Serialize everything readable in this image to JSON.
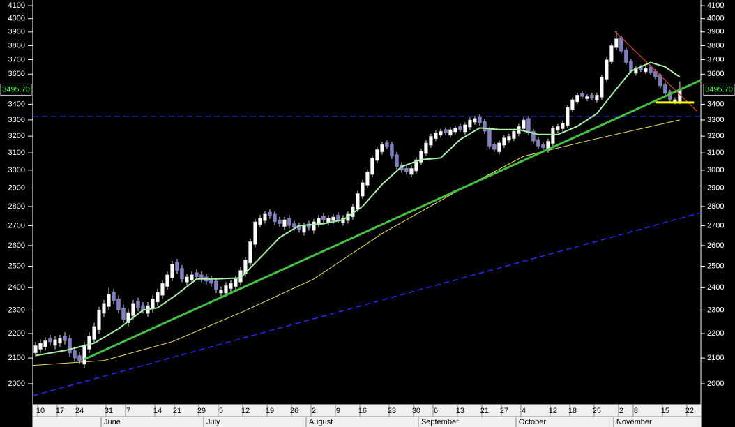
{
  "chart_data": {
    "type": "candlestick",
    "log_scale": true,
    "ylim": [
      1927,
      4144
    ],
    "xlim": [
      -0.571,
      136.3
    ],
    "yticks": [
      2000,
      2100,
      2200,
      2300,
      2400,
      2500,
      2600,
      2700,
      2800,
      2900,
      3000,
      3100,
      3200,
      3300,
      3400,
      3500,
      3600,
      3700,
      3800,
      3900,
      4000,
      4100
    ],
    "xticks": [
      {
        "value": 1,
        "label": "10"
      },
      {
        "value": 5,
        "label": "17"
      },
      {
        "value": 9,
        "label": "24"
      },
      {
        "value": 15,
        "label": "31"
      },
      {
        "value": 19,
        "label": "7"
      },
      {
        "value": 25,
        "label": "14"
      },
      {
        "value": 29,
        "label": "21"
      },
      {
        "value": 34,
        "label": "29"
      },
      {
        "value": 38,
        "label": "5"
      },
      {
        "value": 43,
        "label": "12"
      },
      {
        "value": 48,
        "label": "19"
      },
      {
        "value": 53,
        "label": "26"
      },
      {
        "value": 57,
        "label": "2"
      },
      {
        "value": 62,
        "label": "9"
      },
      {
        "value": 67,
        "label": "16"
      },
      {
        "value": 73,
        "label": "23"
      },
      {
        "value": 78,
        "label": "30"
      },
      {
        "value": 82,
        "label": "6"
      },
      {
        "value": 87,
        "label": "13"
      },
      {
        "value": 92,
        "label": "21"
      },
      {
        "value": 96,
        "label": "27"
      },
      {
        "value": 100,
        "label": "4"
      },
      {
        "value": 106,
        "label": "12"
      },
      {
        "value": 110,
        "label": "18"
      },
      {
        "value": 115,
        "label": "25"
      },
      {
        "value": 120,
        "label": "2"
      },
      {
        "value": 123,
        "label": "8"
      },
      {
        "value": 129,
        "label": "15"
      },
      {
        "value": 134,
        "label": "22"
      }
    ],
    "month_ticks": [
      {
        "value": 14,
        "label": "June"
      },
      {
        "value": 35,
        "label": "July"
      },
      {
        "value": 56,
        "label": "August"
      },
      {
        "value": 79,
        "label": "September"
      },
      {
        "value": 99,
        "label": "October"
      },
      {
        "value": 119,
        "label": "November"
      }
    ],
    "up_color": "#ffffff",
    "down_color": "#8080c0",
    "open": [
      2120,
      2135,
      2145,
      2180,
      2150,
      2160,
      2190,
      2180,
      2130,
      2110,
      2075,
      2135,
      2175,
      2215,
      2285,
      2315,
      2380,
      2350,
      2310,
      2245,
      2275,
      2340,
      2320,
      2285,
      2305,
      2335,
      2365,
      2405,
      2445,
      2520,
      2490,
      2425,
      2435,
      2470,
      2460,
      2450,
      2440,
      2430,
      2375,
      2375,
      2395,
      2405,
      2425,
      2465,
      2515,
      2605,
      2705,
      2725,
      2770,
      2760,
      2730,
      2695,
      2740,
      2710,
      2700,
      2665,
      2710,
      2675,
      2705,
      2750,
      2715,
      2725,
      2755,
      2715,
      2725,
      2745,
      2785,
      2855,
      2915,
      2975,
      3055,
      3105,
      3160,
      3150,
      3090,
      3030,
      3010,
      2975,
      2995,
      3045,
      3095,
      3145,
      3185,
      3205,
      3240,
      3205,
      3225,
      3260,
      3225,
      3255,
      3285,
      3320,
      3290,
      3240,
      3150,
      3105,
      3145,
      3175,
      3185,
      3215,
      3245,
      3310,
      3230,
      3180,
      3150,
      3115,
      3155,
      3235,
      3245,
      3265,
      3365,
      3415,
      3470,
      3435,
      3460,
      3425,
      3445,
      3565,
      3685,
      3785,
      3860,
      3770,
      3690,
      3605,
      3650,
      3615,
      3650,
      3620,
      3590,
      3530,
      3480,
      3415,
      3415
    ],
    "high": [
      2165,
      2175,
      2185,
      2195,
      2190,
      2195,
      2205,
      2195,
      2145,
      2125,
      2165,
      2205,
      2245,
      2315,
      2345,
      2400,
      2395,
      2365,
      2325,
      2305,
      2345,
      2355,
      2335,
      2335,
      2365,
      2395,
      2435,
      2475,
      2525,
      2535,
      2505,
      2465,
      2475,
      2485,
      2475,
      2465,
      2455,
      2445,
      2405,
      2425,
      2435,
      2455,
      2495,
      2545,
      2635,
      2735,
      2755,
      2775,
      2785,
      2775,
      2745,
      2745,
      2755,
      2725,
      2715,
      2715,
      2725,
      2735,
      2755,
      2765,
      2755,
      2760,
      2770,
      2755,
      2775,
      2815,
      2885,
      2945,
      3005,
      3085,
      3135,
      3165,
      3175,
      3165,
      3105,
      3045,
      3025,
      3025,
      3075,
      3125,
      3175,
      3215,
      3235,
      3245,
      3255,
      3255,
      3265,
      3275,
      3285,
      3315,
      3325,
      3335,
      3305,
      3255,
      3165,
      3175,
      3205,
      3215,
      3245,
      3275,
      3315,
      3325,
      3245,
      3195,
      3165,
      3185,
      3265,
      3275,
      3295,
      3395,
      3445,
      3475,
      3485,
      3465,
      3475,
      3475,
      3595,
      3715,
      3815,
      3905,
      3875,
      3785,
      3705,
      3655,
      3665,
      3655,
      3665,
      3635,
      3605,
      3545,
      3495,
      3445,
      3550
    ],
    "low": [
      2105,
      2120,
      2130,
      2150,
      2135,
      2145,
      2155,
      2105,
      2085,
      2075,
      2060,
      2120,
      2160,
      2200,
      2270,
      2300,
      2325,
      2285,
      2245,
      2230,
      2260,
      2295,
      2285,
      2270,
      2290,
      2320,
      2350,
      2390,
      2430,
      2465,
      2425,
      2410,
      2420,
      2435,
      2425,
      2415,
      2405,
      2375,
      2360,
      2360,
      2380,
      2390,
      2410,
      2450,
      2500,
      2590,
      2690,
      2710,
      2735,
      2705,
      2695,
      2680,
      2685,
      2675,
      2665,
      2650,
      2675,
      2660,
      2690,
      2715,
      2700,
      2710,
      2715,
      2700,
      2710,
      2730,
      2770,
      2840,
      2900,
      2960,
      3040,
      3090,
      3125,
      3065,
      3005,
      2985,
      2975,
      2960,
      2980,
      3030,
      3080,
      3130,
      3170,
      3190,
      3205,
      3190,
      3210,
      3225,
      3210,
      3240,
      3270,
      3265,
      3215,
      3125,
      3105,
      3090,
      3130,
      3160,
      3170,
      3200,
      3230,
      3205,
      3155,
      3125,
      3115,
      3100,
      3140,
      3220,
      3230,
      3250,
      3350,
      3400,
      3435,
      3420,
      3425,
      3410,
      3430,
      3550,
      3670,
      3770,
      3745,
      3665,
      3605,
      3590,
      3615,
      3600,
      3595,
      3565,
      3505,
      3455,
      3415,
      3400,
      3400
    ],
    "close": [
      2150,
      2160,
      2170,
      2165,
      2175,
      2180,
      2170,
      2120,
      2100,
      2090,
      2150,
      2190,
      2230,
      2300,
      2330,
      2370,
      2340,
      2300,
      2260,
      2290,
      2330,
      2310,
      2300,
      2320,
      2350,
      2380,
      2420,
      2460,
      2510,
      2480,
      2440,
      2450,
      2460,
      2450,
      2440,
      2430,
      2420,
      2390,
      2390,
      2410,
      2420,
      2440,
      2480,
      2530,
      2620,
      2720,
      2740,
      2760,
      2750,
      2720,
      2710,
      2730,
      2700,
      2690,
      2680,
      2700,
      2690,
      2720,
      2740,
      2730,
      2740,
      2745,
      2730,
      2740,
      2760,
      2800,
      2870,
      2930,
      2990,
      3070,
      3120,
      3150,
      3140,
      3080,
      3020,
      3000,
      2990,
      3010,
      3060,
      3110,
      3160,
      3200,
      3220,
      3230,
      3220,
      3240,
      3250,
      3240,
      3270,
      3300,
      3310,
      3280,
      3230,
      3140,
      3120,
      3160,
      3190,
      3200,
      3230,
      3260,
      3300,
      3220,
      3170,
      3140,
      3130,
      3170,
      3250,
      3260,
      3280,
      3380,
      3430,
      3460,
      3450,
      3450,
      3440,
      3460,
      3580,
      3700,
      3800,
      3850,
      3760,
      3680,
      3620,
      3640,
      3630,
      3640,
      3610,
      3580,
      3520,
      3470,
      3430,
      3430,
      3495.7
    ],
    "overlays": [
      {
        "color": "#f0e060",
        "width": 1,
        "dash": "",
        "x": [
          -0.571,
          14,
          28,
          43,
          57,
          71,
          86,
          100,
          114,
          132
        ],
        "values": [
          2071,
          2090,
          2166,
          2298,
          2440,
          2660,
          2877,
          3080,
          3178,
          3300
        ]
      },
      {
        "color": "#2828ff",
        "width": 1.5,
        "dash": "8 5",
        "x": [
          -0.571,
          136.3
        ],
        "values": [
          1955,
          2767
        ]
      },
      {
        "color": "#2828ff",
        "width": 1.5,
        "dash": "8 5",
        "x": [
          -0.571,
          136.3
        ],
        "values": [
          3321,
          3321
        ]
      },
      {
        "color": "#44c044",
        "width": 3,
        "dash": "",
        "x": [
          10,
          136.3
        ],
        "values": [
          2095,
          3559
        ]
      },
      {
        "color": "#d04828",
        "width": 1.2,
        "dash": "",
        "x": [
          118.7,
          135.6
        ],
        "values": [
          3904,
          3353
        ]
      },
      {
        "color": "#ffff00",
        "width": 3,
        "dash": "",
        "x": [
          127,
          134.9
        ],
        "values": [
          3411,
          3411
        ]
      },
      {
        "color": "#a8f0a8",
        "width": 2,
        "dash": "",
        "x": [
          0,
          6,
          12,
          17,
          22,
          25,
          29,
          33,
          37,
          42,
          46,
          50,
          54,
          59,
          63,
          67,
          71,
          75,
          79,
          83,
          87,
          91,
          95,
          99,
          103,
          107,
          111,
          115,
          119,
          122,
          126,
          129,
          132
        ],
        "values": [
          2110,
          2130,
          2160,
          2220,
          2300,
          2310,
          2370,
          2440,
          2440,
          2445,
          2540,
          2640,
          2700,
          2710,
          2730,
          2800,
          2920,
          3020,
          3060,
          3070,
          3180,
          3250,
          3240,
          3240,
          3210,
          3210,
          3260,
          3340,
          3500,
          3620,
          3680,
          3650,
          3580
        ]
      }
    ],
    "last_price": 3495.7,
    "last_price_label": "3495.70"
  }
}
